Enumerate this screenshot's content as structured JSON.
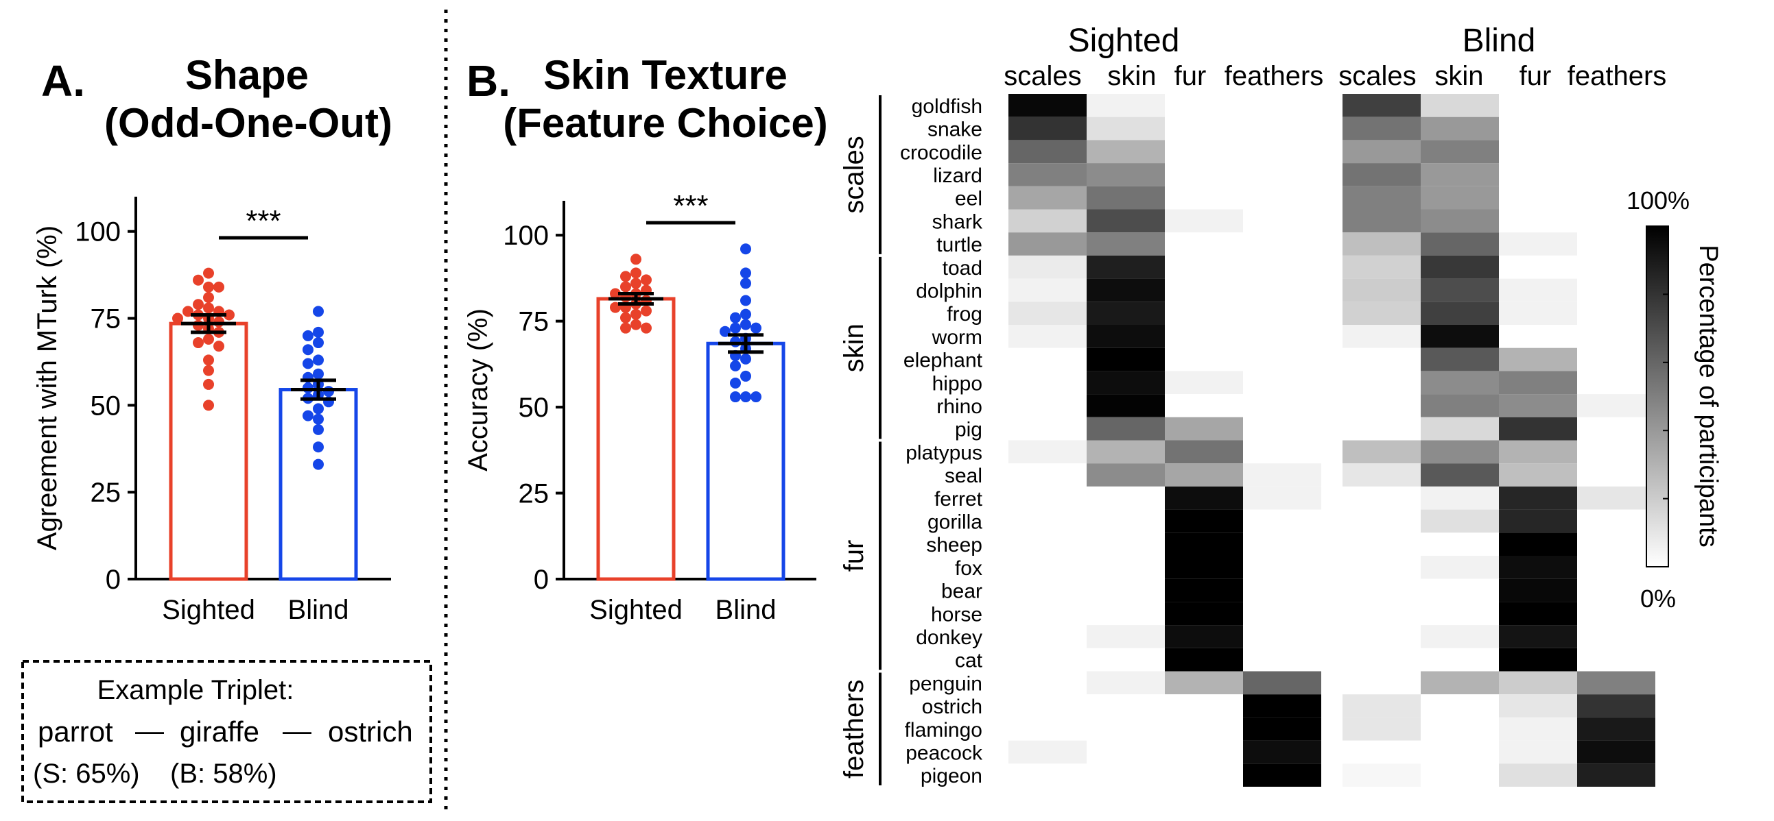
{
  "panel_a": {
    "letter": "A.",
    "title_line1": "Shape",
    "title_line2": "(Odd-One-Out)"
  },
  "panel_b": {
    "letter": "B.",
    "title_line1": "Skin Texture",
    "title_line2": "(Feature Choice)"
  },
  "example": {
    "title": "Example Triplet:",
    "word1": "parrot",
    "word2": "giraffe",
    "word3": "ostrich",
    "dash": "—",
    "sighted_stat": "(S: 65%)",
    "blind_stat": "(B: 58%)"
  },
  "colors": {
    "sighted": "#e8412a",
    "blind": "#1546e8",
    "axis": "#000000",
    "heat_high": "#000000",
    "heat_low": "#ffffff"
  },
  "chart_data": [
    {
      "type": "bar",
      "ylabel": "Agreement with MTurk (%)",
      "categories": [
        "Sighted",
        "Blind"
      ],
      "values": [
        73.5,
        54.5
      ],
      "errors": [
        2.5,
        2.7
      ],
      "ylim": [
        0,
        110
      ],
      "yticks": [
        0,
        25,
        50,
        75,
        100
      ],
      "significance": "***",
      "points": [
        [
          88,
          86,
          84,
          84,
          81,
          79,
          78,
          77,
          77,
          76,
          76,
          75,
          75,
          74,
          73,
          72,
          71,
          69,
          68,
          67,
          63,
          60,
          56,
          50
        ],
        [
          77,
          71,
          70,
          68,
          66,
          63,
          62,
          59,
          58,
          56,
          55,
          54,
          53,
          52,
          51,
          49,
          47,
          46,
          43,
          38,
          33
        ]
      ]
    },
    {
      "type": "bar",
      "ylabel": "Accuracy (%)",
      "categories": [
        "Sighted",
        "Blind"
      ],
      "values": [
        81.5,
        68.5
      ],
      "errors": [
        1.5,
        2.5
      ],
      "ylim": [
        0,
        110
      ],
      "yticks": [
        0,
        25,
        50,
        75,
        100
      ],
      "significance": "***",
      "points": [
        [
          93,
          89,
          88,
          87,
          86,
          85,
          84,
          83,
          83,
          82,
          81,
          80,
          79,
          79,
          78,
          77,
          76,
          74,
          73,
          73
        ],
        [
          96,
          89,
          86,
          81,
          77,
          76,
          74,
          73,
          73,
          72,
          70,
          69,
          67,
          65,
          64,
          62,
          59,
          57,
          53,
          53,
          53
        ]
      ]
    },
    {
      "type": "heatmap",
      "cbar_label": "Percentage of participants",
      "cbar_max_label": "100%",
      "cbar_min_label": "0%",
      "columns": [
        "scales",
        "skin",
        "fur",
        "feathers"
      ],
      "panels": [
        {
          "name": "Sighted",
          "values": [
            [
              0.97,
              0.05,
              0,
              0
            ],
            [
              0.8,
              0.12,
              0,
              0
            ],
            [
              0.6,
              0.3,
              0,
              0
            ],
            [
              0.5,
              0.45,
              0,
              0
            ],
            [
              0.35,
              0.55,
              0,
              0
            ],
            [
              0.18,
              0.7,
              0.05,
              0
            ],
            [
              0.4,
              0.5,
              0,
              0
            ],
            [
              0.08,
              0.88,
              0,
              0
            ],
            [
              0.05,
              0.95,
              0,
              0
            ],
            [
              0.1,
              0.9,
              0,
              0
            ],
            [
              0.05,
              0.95,
              0,
              0
            ],
            [
              0,
              1.0,
              0,
              0
            ],
            [
              0,
              0.95,
              0.05,
              0
            ],
            [
              0,
              0.99,
              0,
              0
            ],
            [
              0,
              0.6,
              0.35,
              0
            ],
            [
              0.05,
              0.3,
              0.55,
              0
            ],
            [
              0,
              0.45,
              0.35,
              0.05
            ],
            [
              0,
              0,
              0.95,
              0.05
            ],
            [
              0,
              0,
              1.0,
              0
            ],
            [
              0,
              0,
              1.0,
              0
            ],
            [
              0,
              0,
              1.0,
              0
            ],
            [
              0,
              0,
              1.0,
              0
            ],
            [
              0,
              0,
              1.0,
              0
            ],
            [
              0,
              0.05,
              0.95,
              0
            ],
            [
              0,
              0,
              1.0,
              0
            ],
            [
              0,
              0.05,
              0.3,
              0.6
            ],
            [
              0,
              0,
              0,
              1.0
            ],
            [
              0,
              0,
              0,
              1.0
            ],
            [
              0.05,
              0,
              0,
              0.95
            ],
            [
              0,
              0,
              0,
              1.0
            ]
          ]
        },
        {
          "name": "Blind",
          "values": [
            [
              0.75,
              0.15,
              0,
              0
            ],
            [
              0.55,
              0.4,
              0,
              0
            ],
            [
              0.4,
              0.5,
              0,
              0
            ],
            [
              0.55,
              0.4,
              0,
              0
            ],
            [
              0.5,
              0.4,
              0,
              0
            ],
            [
              0.5,
              0.45,
              0,
              0
            ],
            [
              0.25,
              0.6,
              0.05,
              0
            ],
            [
              0.18,
              0.78,
              0,
              0
            ],
            [
              0.2,
              0.7,
              0.05,
              0
            ],
            [
              0.18,
              0.75,
              0.05,
              0
            ],
            [
              0.05,
              0.95,
              0,
              0
            ],
            [
              0,
              0.65,
              0.3,
              0
            ],
            [
              0,
              0.45,
              0.5,
              0
            ],
            [
              0,
              0.5,
              0.45,
              0.05
            ],
            [
              0,
              0.15,
              0.8,
              0
            ],
            [
              0.25,
              0.45,
              0.3,
              0
            ],
            [
              0.1,
              0.65,
              0.25,
              0
            ],
            [
              0,
              0.05,
              0.85,
              0.1
            ],
            [
              0,
              0.12,
              0.85,
              0
            ],
            [
              0,
              0,
              1.0,
              0
            ],
            [
              0,
              0.05,
              0.95,
              0
            ],
            [
              0,
              0,
              0.97,
              0
            ],
            [
              0,
              0,
              1.0,
              0
            ],
            [
              0,
              0.05,
              0.92,
              0
            ],
            [
              0,
              0,
              1.0,
              0
            ],
            [
              0,
              0.3,
              0.2,
              0.5
            ],
            [
              0.1,
              0,
              0.1,
              0.8
            ],
            [
              0.1,
              0,
              0.05,
              0.9
            ],
            [
              0,
              0,
              0.05,
              0.95
            ],
            [
              0.03,
              0,
              0.12,
              0.88
            ]
          ]
        }
      ],
      "groups": [
        {
          "label": "scales",
          "rows": [
            "goldfish",
            "snake",
            "crocodile",
            "lizard",
            "eel",
            "shark",
            "turtle"
          ]
        },
        {
          "label": "skin",
          "rows": [
            "toad",
            "dolphin",
            "frog",
            "worm",
            "elephant",
            "hippo",
            "rhino",
            "pig"
          ]
        },
        {
          "label": "fur",
          "rows": [
            "platypus",
            "seal",
            "ferret",
            "gorilla",
            "sheep",
            "fox",
            "bear",
            "horse",
            "donkey",
            "cat"
          ]
        },
        {
          "label": "feathers",
          "rows": [
            "penguin",
            "ostrich",
            "flamingo",
            "peacock",
            "pigeon"
          ]
        }
      ]
    }
  ]
}
